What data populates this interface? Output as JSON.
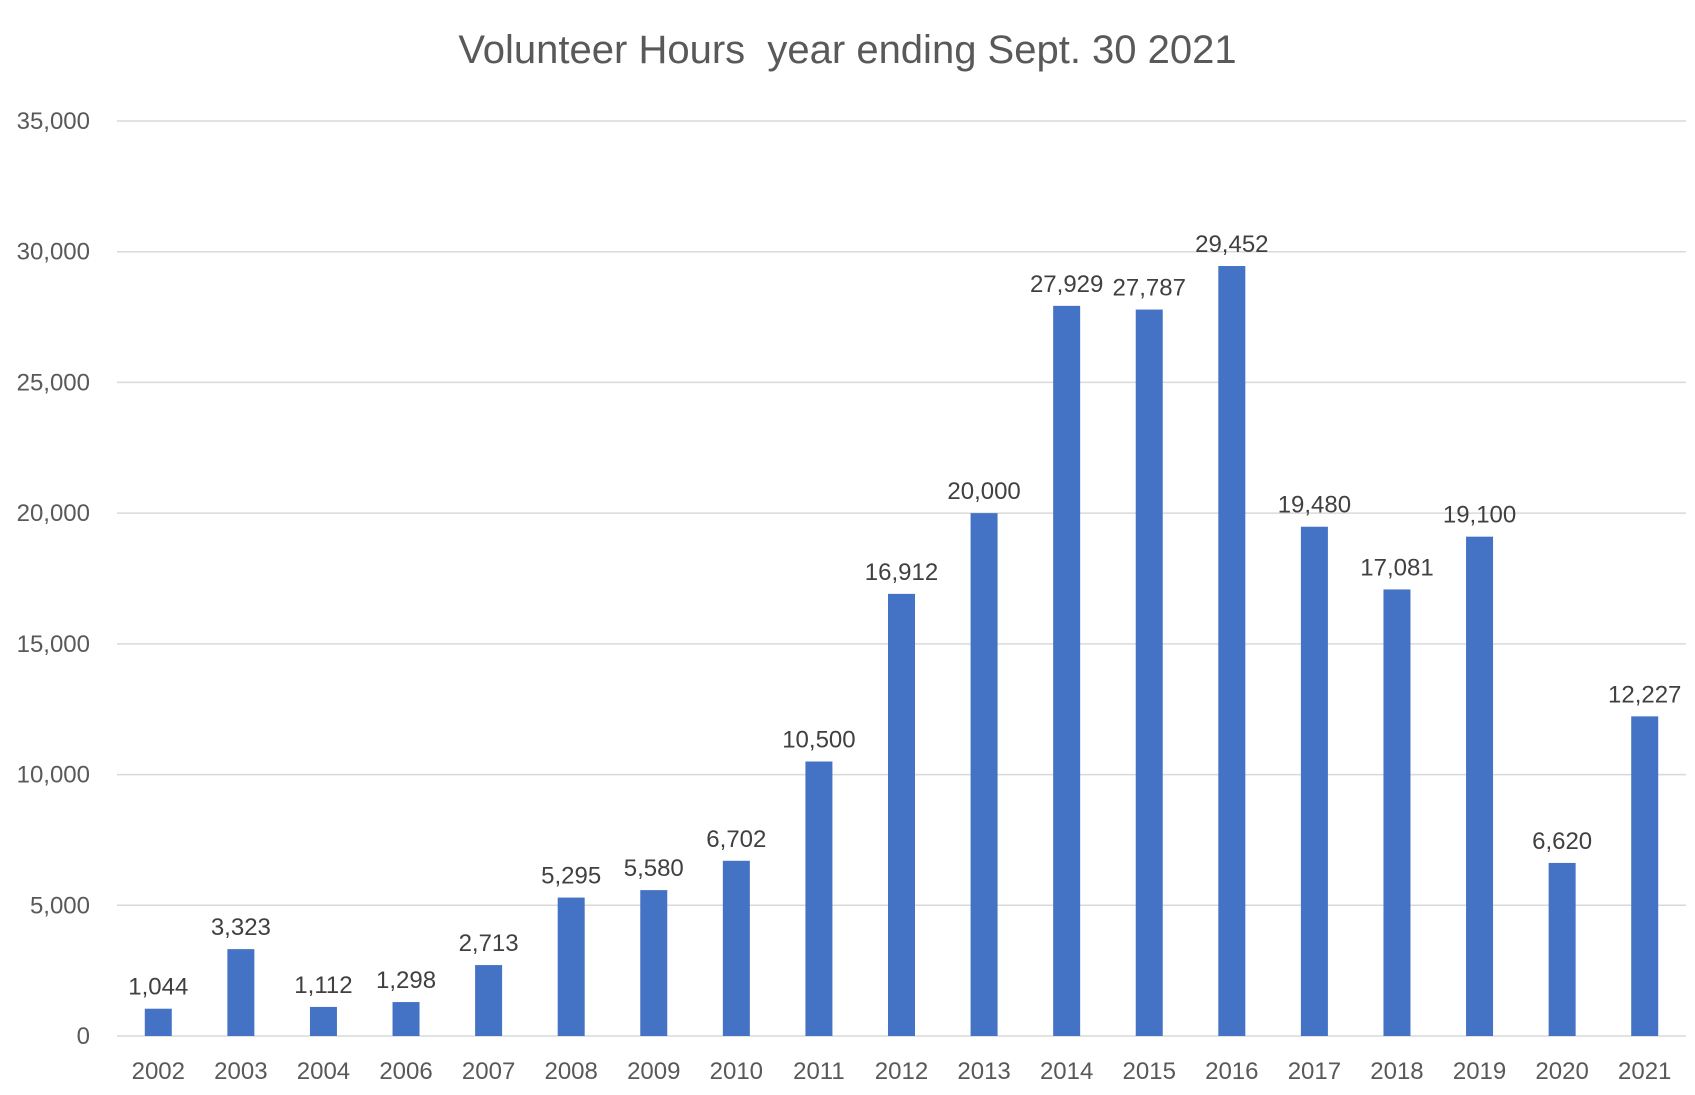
{
  "chart_data": {
    "type": "bar",
    "title": "Volunteer Hours  year ending Sept. 30 2021",
    "categories": [
      "2002",
      "2003",
      "2004",
      "2006",
      "2007",
      "2008",
      "2009",
      "2010",
      "2011",
      "2012",
      "2013",
      "2014",
      "2015",
      "2016",
      "2017",
      "2018",
      "2019",
      "2020",
      "2021"
    ],
    "values": [
      1044,
      3323,
      1112,
      1298,
      2713,
      5295,
      5580,
      6702,
      10500,
      16912,
      20000,
      27929,
      27787,
      29452,
      19480,
      17081,
      19100,
      6620,
      12227
    ],
    "data_labels": [
      "1,044",
      "3,323",
      "1,112",
      "1,298",
      "2,713",
      "5,295",
      "5,580",
      "6,702",
      "10,500",
      "16,912",
      "20,000",
      "27,929",
      "27,787",
      "29,452",
      "19,480",
      "17,081",
      "19,100",
      "6,620",
      "12,227"
    ],
    "ylim": [
      0,
      35000
    ],
    "yticks": [
      0,
      5000,
      10000,
      15000,
      20000,
      25000,
      30000,
      35000
    ],
    "ytick_labels": [
      "0",
      "5,000",
      "10,000",
      "15,000",
      "20,000",
      "25,000",
      "30,000",
      "35,000"
    ],
    "xlabel": "",
    "ylabel": "",
    "grid": true,
    "legend": "none",
    "bar_color": "#4472c4"
  }
}
